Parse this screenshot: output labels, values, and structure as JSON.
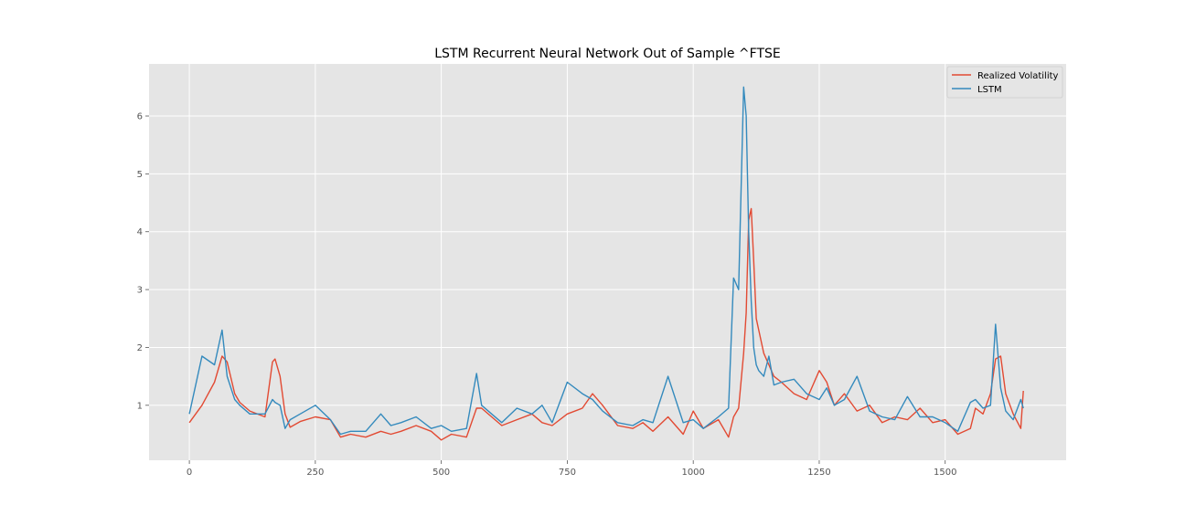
{
  "chart_data": {
    "type": "line",
    "title": "LSTM Recurrent Neural Network Out of Sample ^FTSE",
    "xlabel": "",
    "ylabel": "",
    "xlim": [
      -80,
      1740
    ],
    "ylim": [
      0.05,
      6.9
    ],
    "x_ticks": [
      0,
      250,
      500,
      750,
      1000,
      1250,
      1500
    ],
    "x_tick_labels": [
      "0",
      "250",
      "500",
      "750",
      "1000",
      "1250",
      "1500"
    ],
    "y_ticks": [
      1,
      2,
      3,
      4,
      5,
      6
    ],
    "y_tick_labels": [
      "1",
      "2",
      "3",
      "4",
      "5",
      "6"
    ],
    "grid": true,
    "legend_position": "top-right",
    "x": [
      0,
      25,
      50,
      65,
      75,
      90,
      100,
      120,
      150,
      165,
      170,
      180,
      190,
      200,
      220,
      250,
      280,
      300,
      320,
      350,
      380,
      400,
      420,
      450,
      480,
      500,
      520,
      550,
      570,
      580,
      600,
      620,
      650,
      680,
      700,
      720,
      750,
      780,
      800,
      820,
      850,
      880,
      900,
      920,
      950,
      980,
      1000,
      1020,
      1050,
      1070,
      1080,
      1090,
      1100,
      1105,
      1110,
      1115,
      1120,
      1125,
      1130,
      1140,
      1150,
      1160,
      1175,
      1200,
      1225,
      1250,
      1265,
      1280,
      1300,
      1325,
      1350,
      1375,
      1400,
      1425,
      1450,
      1475,
      1500,
      1525,
      1550,
      1560,
      1575,
      1590,
      1600,
      1610,
      1620,
      1635,
      1650,
      1655
    ],
    "series": [
      {
        "name": "Realized Volatility",
        "color": "#E24A33",
        "values": [
          0.7,
          1.0,
          1.4,
          1.85,
          1.75,
          1.2,
          1.05,
          0.9,
          0.8,
          1.75,
          1.8,
          1.5,
          0.85,
          0.62,
          0.72,
          0.8,
          0.75,
          0.45,
          0.5,
          0.45,
          0.55,
          0.5,
          0.55,
          0.65,
          0.55,
          0.4,
          0.5,
          0.45,
          0.95,
          0.95,
          0.8,
          0.65,
          0.75,
          0.85,
          0.7,
          0.65,
          0.85,
          0.95,
          1.2,
          1.0,
          0.65,
          0.6,
          0.7,
          0.55,
          0.8,
          0.5,
          0.9,
          0.6,
          0.75,
          0.45,
          0.8,
          0.95,
          1.9,
          2.6,
          4.2,
          4.4,
          3.5,
          2.5,
          2.3,
          1.9,
          1.7,
          1.5,
          1.4,
          1.2,
          1.1,
          1.6,
          1.4,
          1.0,
          1.2,
          0.9,
          1.0,
          0.7,
          0.8,
          0.75,
          0.95,
          0.7,
          0.75,
          0.5,
          0.6,
          0.95,
          0.85,
          1.2,
          1.8,
          1.85,
          1.2,
          0.85,
          0.6,
          1.25
        ]
      },
      {
        "name": "LSTM",
        "color": "#348ABD",
        "values": [
          0.85,
          1.85,
          1.7,
          2.3,
          1.5,
          1.1,
          1.0,
          0.85,
          0.85,
          1.1,
          1.05,
          1.0,
          0.6,
          0.75,
          0.85,
          1.0,
          0.75,
          0.5,
          0.55,
          0.55,
          0.85,
          0.65,
          0.7,
          0.8,
          0.6,
          0.65,
          0.55,
          0.6,
          1.55,
          1.0,
          0.85,
          0.7,
          0.95,
          0.85,
          1.0,
          0.7,
          1.4,
          1.2,
          1.1,
          0.9,
          0.7,
          0.65,
          0.75,
          0.7,
          1.5,
          0.7,
          0.75,
          0.6,
          0.8,
          0.95,
          3.2,
          3.0,
          6.5,
          6.0,
          4.0,
          2.8,
          2.0,
          1.7,
          1.6,
          1.5,
          1.85,
          1.35,
          1.4,
          1.45,
          1.2,
          1.1,
          1.3,
          1.0,
          1.1,
          1.5,
          0.9,
          0.8,
          0.75,
          1.15,
          0.8,
          0.8,
          0.7,
          0.55,
          1.05,
          1.1,
          0.95,
          1.0,
          2.4,
          1.3,
          0.9,
          0.75,
          1.1,
          0.95
        ]
      }
    ]
  }
}
